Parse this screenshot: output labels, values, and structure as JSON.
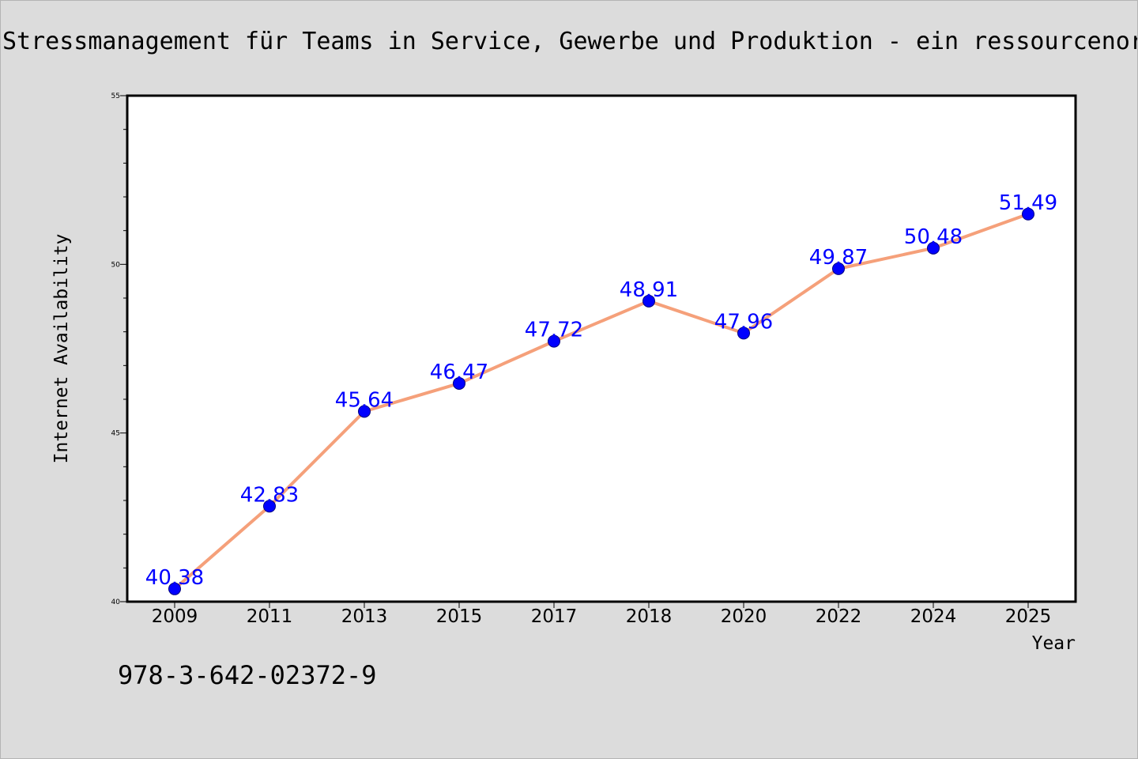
{
  "page": {
    "background": "#dcdcdc",
    "footnote": "978-3-642-02372-9"
  },
  "chart_data": {
    "type": "line",
    "title": "Stressmanagement für Teams in Service, Gewerbe und Produktion - ein ressourcenor",
    "xlabel": "Year",
    "ylabel": "Internet Availability",
    "categories": [
      "2009",
      "2011",
      "2013",
      "2015",
      "2017",
      "2018",
      "2020",
      "2022",
      "2024",
      "2025"
    ],
    "series": [
      {
        "values": [
          40.38,
          42.83,
          45.64,
          46.47,
          47.72,
          48.91,
          47.96,
          49.87,
          50.48,
          51.49
        ],
        "data_labels": [
          "40.38",
          "42.83",
          "45.64",
          "46.47",
          "47.72",
          "48.91",
          "47.96",
          "49.87",
          "50.48",
          "51.49"
        ],
        "line_color": "#f5a07a",
        "marker_color": "#0000ff",
        "label_color": "#0000ff"
      }
    ],
    "ylim": [
      40,
      55
    ],
    "yticks": [
      40,
      45,
      50,
      55
    ],
    "y_minor_step": 1,
    "grid": false,
    "legend": "none",
    "plot_background": "#ffffff"
  }
}
